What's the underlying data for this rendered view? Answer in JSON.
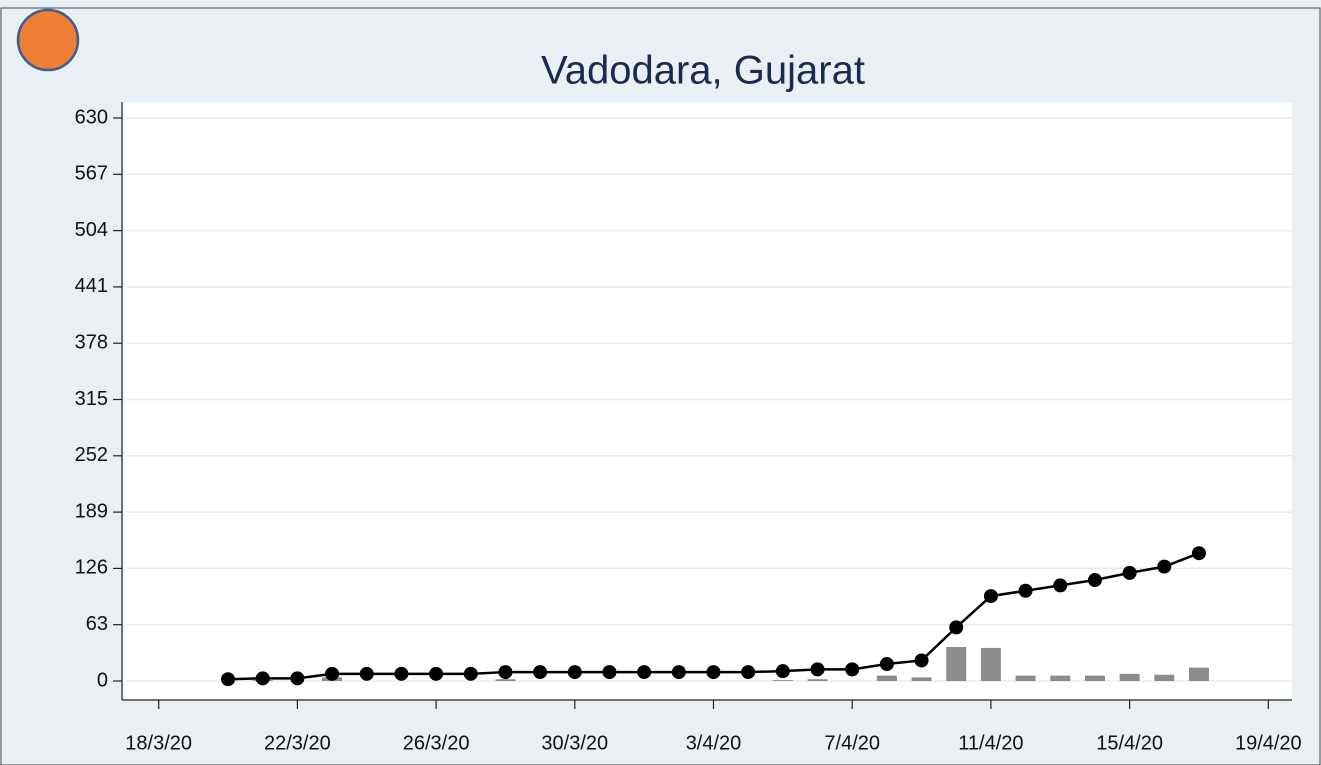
{
  "chart_data": {
    "type": "line",
    "title": "Vadodara, Gujarat",
    "x": [
      "2020-03-20",
      "2020-03-21",
      "2020-03-22",
      "2020-03-23",
      "2020-03-24",
      "2020-03-25",
      "2020-03-26",
      "2020-03-27",
      "2020-03-28",
      "2020-03-29",
      "2020-03-30",
      "2020-03-31",
      "2020-04-01",
      "2020-04-02",
      "2020-04-03",
      "2020-04-04",
      "2020-04-05",
      "2020-04-06",
      "2020-04-07",
      "2020-04-08",
      "2020-04-09",
      "2020-04-10",
      "2020-04-11",
      "2020-04-12",
      "2020-04-13",
      "2020-04-14",
      "2020-04-15",
      "2020-04-16",
      "2020-04-17"
    ],
    "series": [
      {
        "type": "line",
        "color": "#000000",
        "values": [
          2,
          3,
          3,
          8,
          8,
          8,
          8,
          8,
          10,
          10,
          10,
          10,
          10,
          10,
          10,
          10,
          11,
          13,
          13,
          19,
          23,
          60,
          95,
          101,
          107,
          113,
          121,
          128,
          143
        ]
      },
      {
        "type": "bar",
        "color": "#8c8c8c",
        "values": [
          0,
          1,
          0,
          4,
          0,
          0,
          0,
          0,
          2,
          0,
          0,
          0,
          0,
          0,
          0,
          0,
          1,
          2,
          0,
          6,
          4,
          38,
          37,
          6,
          6,
          6,
          8,
          7,
          15
        ]
      }
    ],
    "xlim": [
      "2020-03-17",
      "2020-04-20"
    ],
    "xticks": [
      {
        "value": "2020-03-18",
        "label": "18/3/20"
      },
      {
        "value": "2020-03-22",
        "label": "22/3/20"
      },
      {
        "value": "2020-03-26",
        "label": "26/3/20"
      },
      {
        "value": "2020-03-30",
        "label": "30/3/20"
      },
      {
        "value": "2020-04-03",
        "label": "3/4/20"
      },
      {
        "value": "2020-04-07",
        "label": "7/4/20"
      },
      {
        "value": "2020-04-11",
        "label": "11/4/20"
      },
      {
        "value": "2020-04-15",
        "label": "15/4/20"
      },
      {
        "value": "2020-04-19",
        "label": "19/4/20"
      }
    ],
    "ylim": [
      0,
      630
    ],
    "yticks": [
      0,
      63,
      126,
      189,
      252,
      315,
      378,
      441,
      504,
      567,
      630
    ],
    "grid": true
  }
}
